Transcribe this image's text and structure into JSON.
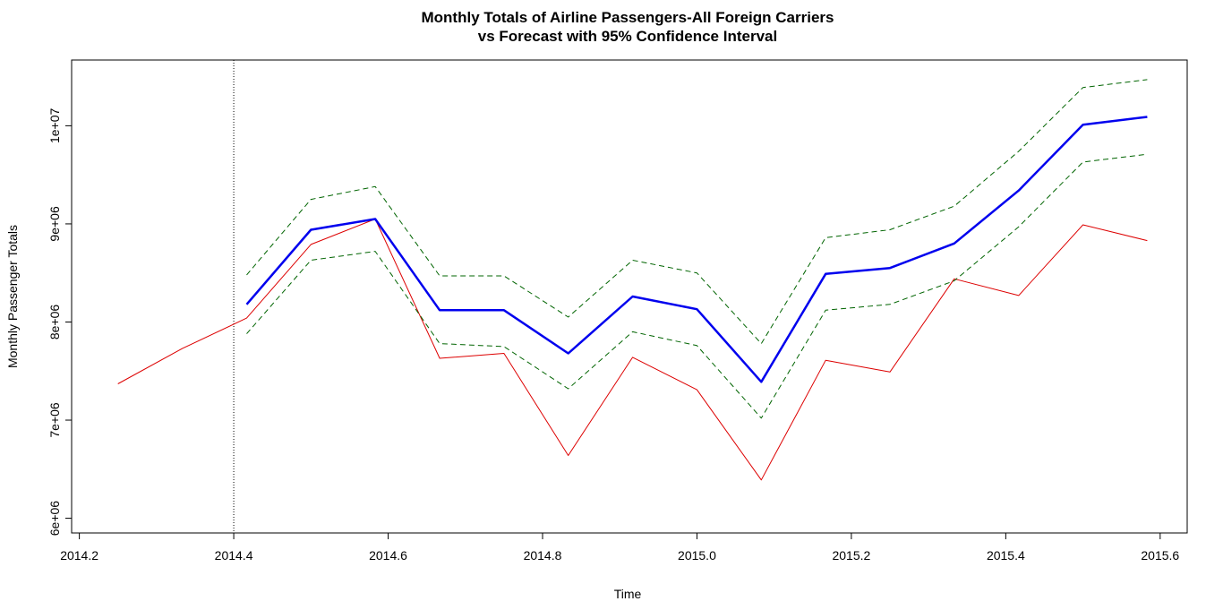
{
  "chart_data": {
    "type": "line",
    "title_line1": "Monthly Totals of Airline Passengers-All Foreign Carriers",
    "title_line2": "vs Forecast with 95% Confidence Interval",
    "xlabel": "Time",
    "ylabel": "Monthly Passenger Totals",
    "xlim": [
      2014.19,
      2015.635
    ],
    "ylim": [
      5850000,
      10670000
    ],
    "x_ticks": [
      2014.2,
      2014.4,
      2014.6,
      2014.8,
      2015.0,
      2015.2,
      2015.4,
      2015.6
    ],
    "x_tick_labels": [
      "2014.2",
      "2014.4",
      "2014.6",
      "2014.8",
      "2015.0",
      "2015.2",
      "2015.4",
      "2015.6"
    ],
    "y_ticks": [
      6000000,
      7000000,
      8000000,
      9000000,
      10000000
    ],
    "y_tick_labels": [
      "6e+06",
      "7e+06",
      "8e+06",
      "9e+06",
      "1e+07"
    ],
    "vline_x": 2014.4,
    "grid": false,
    "series": [
      {
        "color": "#dd0000",
        "width": 1,
        "dash": "",
        "x": [
          2014.25,
          2014.3333,
          2014.4167,
          2014.5,
          2014.5833,
          2014.6667,
          2014.75,
          2014.8333,
          2014.9167,
          2015.0,
          2015.0833,
          2015.1667,
          2015.25,
          2015.3333,
          2015.4167,
          2015.5,
          2015.5833
        ],
        "values": [
          7370000,
          7730000,
          8040000,
          8790000,
          9050000,
          7630000,
          7680000,
          6640000,
          7640000,
          7310000,
          6390000,
          7610000,
          7490000,
          8440000,
          8270000,
          8990000,
          8830000
        ]
      },
      {
        "color": "#0000ee",
        "width": 2.5,
        "dash": "",
        "x": [
          2014.4167,
          2014.5,
          2014.5833,
          2014.6667,
          2014.75,
          2014.8333,
          2014.9167,
          2015.0,
          2015.0833,
          2015.1667,
          2015.25,
          2015.3333,
          2015.4167,
          2015.5,
          2015.5833
        ],
        "values": [
          8180000,
          8940000,
          9050000,
          8120000,
          8120000,
          7680000,
          8260000,
          8130000,
          7390000,
          8490000,
          8550000,
          8800000,
          9340000,
          10010000,
          10090000
        ]
      },
      {
        "color": "#006400",
        "width": 1,
        "dash": "6,4",
        "x": [
          2014.4167,
          2014.5,
          2014.5833,
          2014.6667,
          2014.75,
          2014.8333,
          2014.9167,
          2015.0,
          2015.0833,
          2015.1667,
          2015.25,
          2015.3333,
          2015.4167,
          2015.5,
          2015.5833
        ],
        "values": [
          8480000,
          9250000,
          9380000,
          8470000,
          8470000,
          8050000,
          8630000,
          8500000,
          7780000,
          8860000,
          8940000,
          9180000,
          9740000,
          10390000,
          10470000
        ]
      },
      {
        "color": "#006400",
        "width": 1,
        "dash": "6,4",
        "x": [
          2014.4167,
          2014.5,
          2014.5833,
          2014.6667,
          2014.75,
          2014.8333,
          2014.9167,
          2015.0,
          2015.0833,
          2015.1667,
          2015.25,
          2015.3333,
          2015.4167,
          2015.5,
          2015.5833
        ],
        "values": [
          7880000,
          8630000,
          8720000,
          7780000,
          7750000,
          7320000,
          7900000,
          7760000,
          7020000,
          8120000,
          8180000,
          8420000,
          8970000,
          9630000,
          9710000
        ]
      }
    ]
  }
}
